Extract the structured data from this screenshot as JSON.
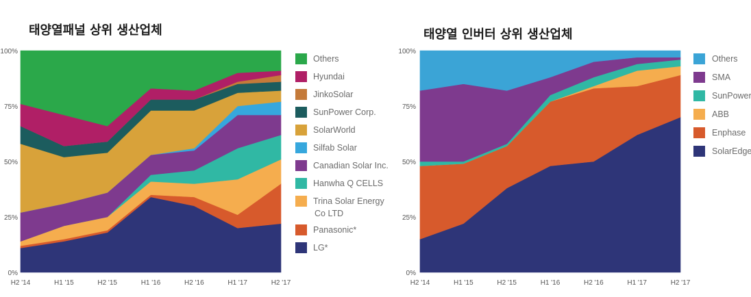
{
  "chart_data": [
    {
      "type": "area",
      "stacked": true,
      "title": "태양열패널 상위 생산업체",
      "categories": [
        "H2 '14",
        "H1 '15",
        "H2 '15",
        "H1 '16",
        "H2 '16",
        "H1 '17",
        "H2 '17"
      ],
      "ytick_labels": [
        "0%",
        "25%",
        "50%",
        "75%",
        "100%"
      ],
      "ylim": [
        0,
        100
      ],
      "legend_position": "right",
      "series": [
        {
          "name": "LG*",
          "color": "#2e3578",
          "values": [
            11,
            14,
            18,
            34,
            30,
            20,
            22
          ]
        },
        {
          "name": "Panasonic*",
          "color": "#d75a2c",
          "values": [
            1,
            1,
            1,
            1,
            4,
            6,
            18
          ]
        },
        {
          "name": "Trina Solar Energy Co LTD",
          "color": "#f5ad4e",
          "values": [
            2,
            6,
            6,
            6,
            6,
            16,
            11
          ]
        },
        {
          "name": "Hanwha Q CELLS",
          "color": "#30b8a4",
          "values": [
            0,
            0,
            0,
            3,
            6,
            14,
            11
          ]
        },
        {
          "name": "Canadian Solar Inc.",
          "color": "#7e3a8e",
          "values": [
            13,
            10,
            11,
            9,
            9,
            15,
            9
          ]
        },
        {
          "name": "Silfab Solar",
          "color": "#36a7dd",
          "values": [
            0,
            0,
            0,
            0,
            1,
            4,
            6
          ]
        },
        {
          "name": "SolarWorld",
          "color": "#d8a23a",
          "values": [
            31,
            21,
            18,
            20,
            17,
            6,
            5
          ]
        },
        {
          "name": "SunPower Corp.",
          "color": "#1c5c5e",
          "values": [
            8,
            5,
            5,
            5,
            5,
            4,
            4
          ]
        },
        {
          "name": "JinkoSolar",
          "color": "#c47a3a",
          "values": [
            0,
            0,
            0,
            0,
            0,
            1,
            3
          ]
        },
        {
          "name": "Hyundai",
          "color": "#b01f66",
          "values": [
            10,
            14,
            7,
            5,
            4,
            4,
            2
          ]
        },
        {
          "name": "Others",
          "color": "#2ba84a",
          "values": [
            24,
            29,
            34,
            17,
            18,
            10,
            9
          ]
        }
      ]
    },
    {
      "type": "area",
      "stacked": true,
      "title": "태양열 인버터 상위 생산업체",
      "categories": [
        "H2 '14",
        "H1 '15",
        "H2 '15",
        "H1 '16",
        "H2 '16",
        "H1 '17",
        "H2 '17"
      ],
      "ytick_labels": [
        "0%",
        "25%",
        "50%",
        "75%",
        "100%"
      ],
      "ylim": [
        0,
        100
      ],
      "legend_position": "right",
      "series": [
        {
          "name": "SolarEdge",
          "color": "#2e3578",
          "values": [
            15,
            22,
            38,
            48,
            50,
            62,
            70
          ]
        },
        {
          "name": "Enphase",
          "color": "#d75a2c",
          "values": [
            33,
            27,
            19,
            29,
            33,
            22,
            19
          ]
        },
        {
          "name": "ABB",
          "color": "#f5ad4e",
          "values": [
            0,
            0,
            0,
            0,
            1,
            7,
            4
          ]
        },
        {
          "name": "SunPower",
          "color": "#30b8a4",
          "values": [
            2,
            1,
            1,
            3,
            4,
            3,
            3
          ]
        },
        {
          "name": "SMA",
          "color": "#7e3a8e",
          "values": [
            32,
            35,
            24,
            8,
            7,
            3,
            1
          ]
        },
        {
          "name": "Others",
          "color": "#3ba4d6",
          "values": [
            18,
            15,
            18,
            12,
            5,
            3,
            3
          ]
        }
      ]
    }
  ]
}
